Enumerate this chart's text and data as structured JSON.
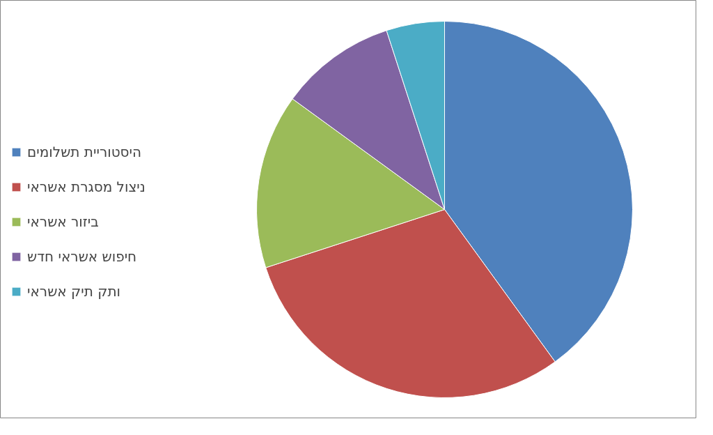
{
  "chart_data": {
    "type": "pie",
    "categories": [
      "היסטוריית תשלומים",
      "ניצול מסגרת אשראי",
      "ביזור אשראי",
      "חיפוש אשראי חדש",
      "ותק תיק אשראי"
    ],
    "values": [
      40,
      30,
      15,
      10,
      5
    ],
    "colors": [
      "#4f81bd",
      "#c0504d",
      "#9bbb59",
      "#8064a2",
      "#4bacc6"
    ],
    "legend": "left"
  }
}
